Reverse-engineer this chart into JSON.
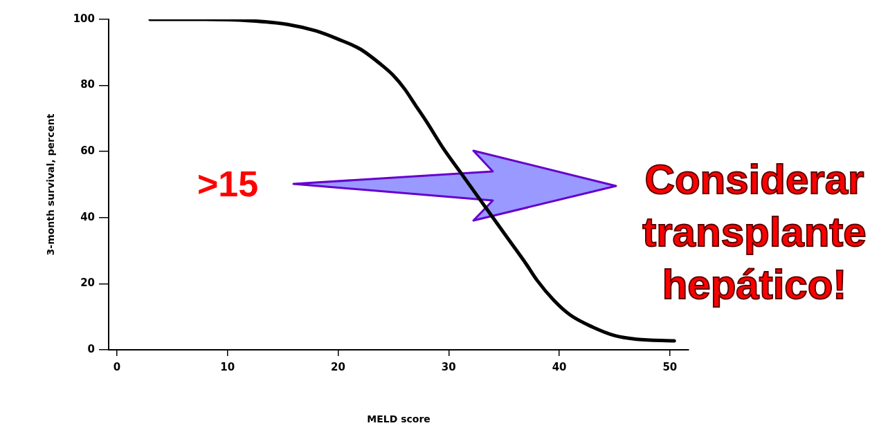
{
  "chart_data": {
    "type": "line",
    "xlabel": "MELD score",
    "ylabel": "3-month survival, percent",
    "x": [
      3,
      8,
      12,
      15.4,
      18,
      20,
      22,
      24,
      25,
      26,
      27,
      28,
      29.5,
      31,
      34,
      35.5,
      37,
      38,
      39.5,
      41,
      43,
      45,
      47,
      50.4
    ],
    "series": [
      {
        "color": "#000000",
        "values": [
          100,
          100,
          99.6,
          98.5,
          96.5,
          94,
          91,
          86,
          83,
          79,
          74,
          69,
          61,
          54,
          40,
          33,
          26,
          21,
          15,
          10.5,
          6.9,
          4.3,
          3.2,
          2.7
        ]
      }
    ],
    "xlim": [
      -0.75,
      51.7
    ],
    "xticks": [
      0,
      10,
      20,
      30,
      40,
      50
    ],
    "ylim": [
      0,
      100
    ],
    "yticks": [
      0,
      20,
      40,
      60,
      80,
      100
    ],
    "grid": false,
    "legend": false,
    "marker": "none",
    "line_style": "solid",
    "annotations": [
      ">15",
      "Considerar transplante hepático!"
    ]
  }
}
